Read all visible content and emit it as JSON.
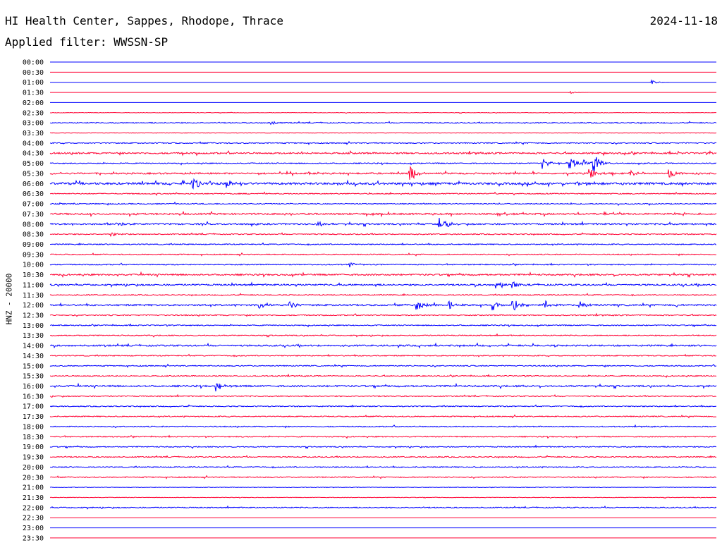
{
  "header": {
    "station": "HI Health Center, Sappes, Rhodope, Thrace",
    "date": "2024-11-18",
    "filter": "Applied filter: WWSSN-SP",
    "ylabel": "HNZ - 20000"
  },
  "colors": {
    "even": "#0000ff",
    "odd": "#ff0033"
  },
  "chart_data": {
    "type": "line",
    "title": "HI Health Center, Sappes, Rhodope, Thrace",
    "ylabel": "HNZ - 20000",
    "grid": false,
    "tick_labels": [
      "00:00",
      "00:30",
      "01:00",
      "01:30",
      "02:00",
      "02:30",
      "03:00",
      "03:30",
      "04:00",
      "04:30",
      "05:00",
      "05:30",
      "06:00",
      "06:30",
      "07:00",
      "07:30",
      "08:00",
      "08:30",
      "09:00",
      "09:30",
      "10:00",
      "10:30",
      "11:00",
      "11:30",
      "12:00",
      "12:30",
      "13:00",
      "13:30",
      "14:00",
      "14:30",
      "15:00",
      "15:30",
      "16:00",
      "16:30",
      "17:00",
      "17:30",
      "18:00",
      "18:30",
      "19:00",
      "19:30",
      "20:00",
      "20:30",
      "21:00",
      "21:30",
      "22:00",
      "22:30",
      "23:00",
      "23:30"
    ],
    "row_noise": [
      0,
      0,
      0,
      0,
      0,
      1,
      2,
      1,
      2,
      3,
      2,
      3,
      4,
      2,
      2,
      3,
      3,
      2,
      2,
      2,
      2,
      3,
      3,
      2,
      3,
      2,
      2,
      2,
      3,
      2,
      2,
      2,
      3,
      2,
      2,
      2,
      2,
      2,
      2,
      2,
      2,
      2,
      1,
      1,
      2,
      0,
      0,
      0
    ],
    "events": [
      {
        "row": 2,
        "t": 0.902,
        "amp": 3
      },
      {
        "row": 3,
        "t": 0.78,
        "amp": 2
      },
      {
        "row": 6,
        "t": 0.33,
        "amp": 3
      },
      {
        "row": 10,
        "t": 0.74,
        "amp": 8
      },
      {
        "row": 10,
        "t": 0.78,
        "amp": 9
      },
      {
        "row": 10,
        "t": 0.8,
        "amp": 6
      },
      {
        "row": 10,
        "t": 0.815,
        "amp": 16
      },
      {
        "row": 11,
        "t": 0.54,
        "amp": 12
      },
      {
        "row": 11,
        "t": 0.81,
        "amp": 8
      },
      {
        "row": 11,
        "t": 0.87,
        "amp": 5
      },
      {
        "row": 11,
        "t": 0.93,
        "amp": 6
      },
      {
        "row": 12,
        "t": 0.215,
        "amp": 9
      },
      {
        "row": 12,
        "t": 0.265,
        "amp": 7
      },
      {
        "row": 16,
        "t": 0.1,
        "amp": 4
      },
      {
        "row": 16,
        "t": 0.4,
        "amp": 5
      },
      {
        "row": 16,
        "t": 0.585,
        "amp": 13
      },
      {
        "row": 17,
        "t": 0.092,
        "amp": 4
      },
      {
        "row": 20,
        "t": 0.45,
        "amp": 4
      },
      {
        "row": 22,
        "t": 0.67,
        "amp": 6
      },
      {
        "row": 22,
        "t": 0.695,
        "amp": 5
      },
      {
        "row": 24,
        "t": 0.315,
        "amp": 6
      },
      {
        "row": 24,
        "t": 0.36,
        "amp": 6
      },
      {
        "row": 24,
        "t": 0.55,
        "amp": 8
      },
      {
        "row": 24,
        "t": 0.6,
        "amp": 6
      },
      {
        "row": 24,
        "t": 0.665,
        "amp": 7
      },
      {
        "row": 24,
        "t": 0.695,
        "amp": 10
      },
      {
        "row": 24,
        "t": 0.74,
        "amp": 8
      },
      {
        "row": 24,
        "t": 0.795,
        "amp": 6
      },
      {
        "row": 32,
        "t": 0.25,
        "amp": 7
      }
    ]
  }
}
